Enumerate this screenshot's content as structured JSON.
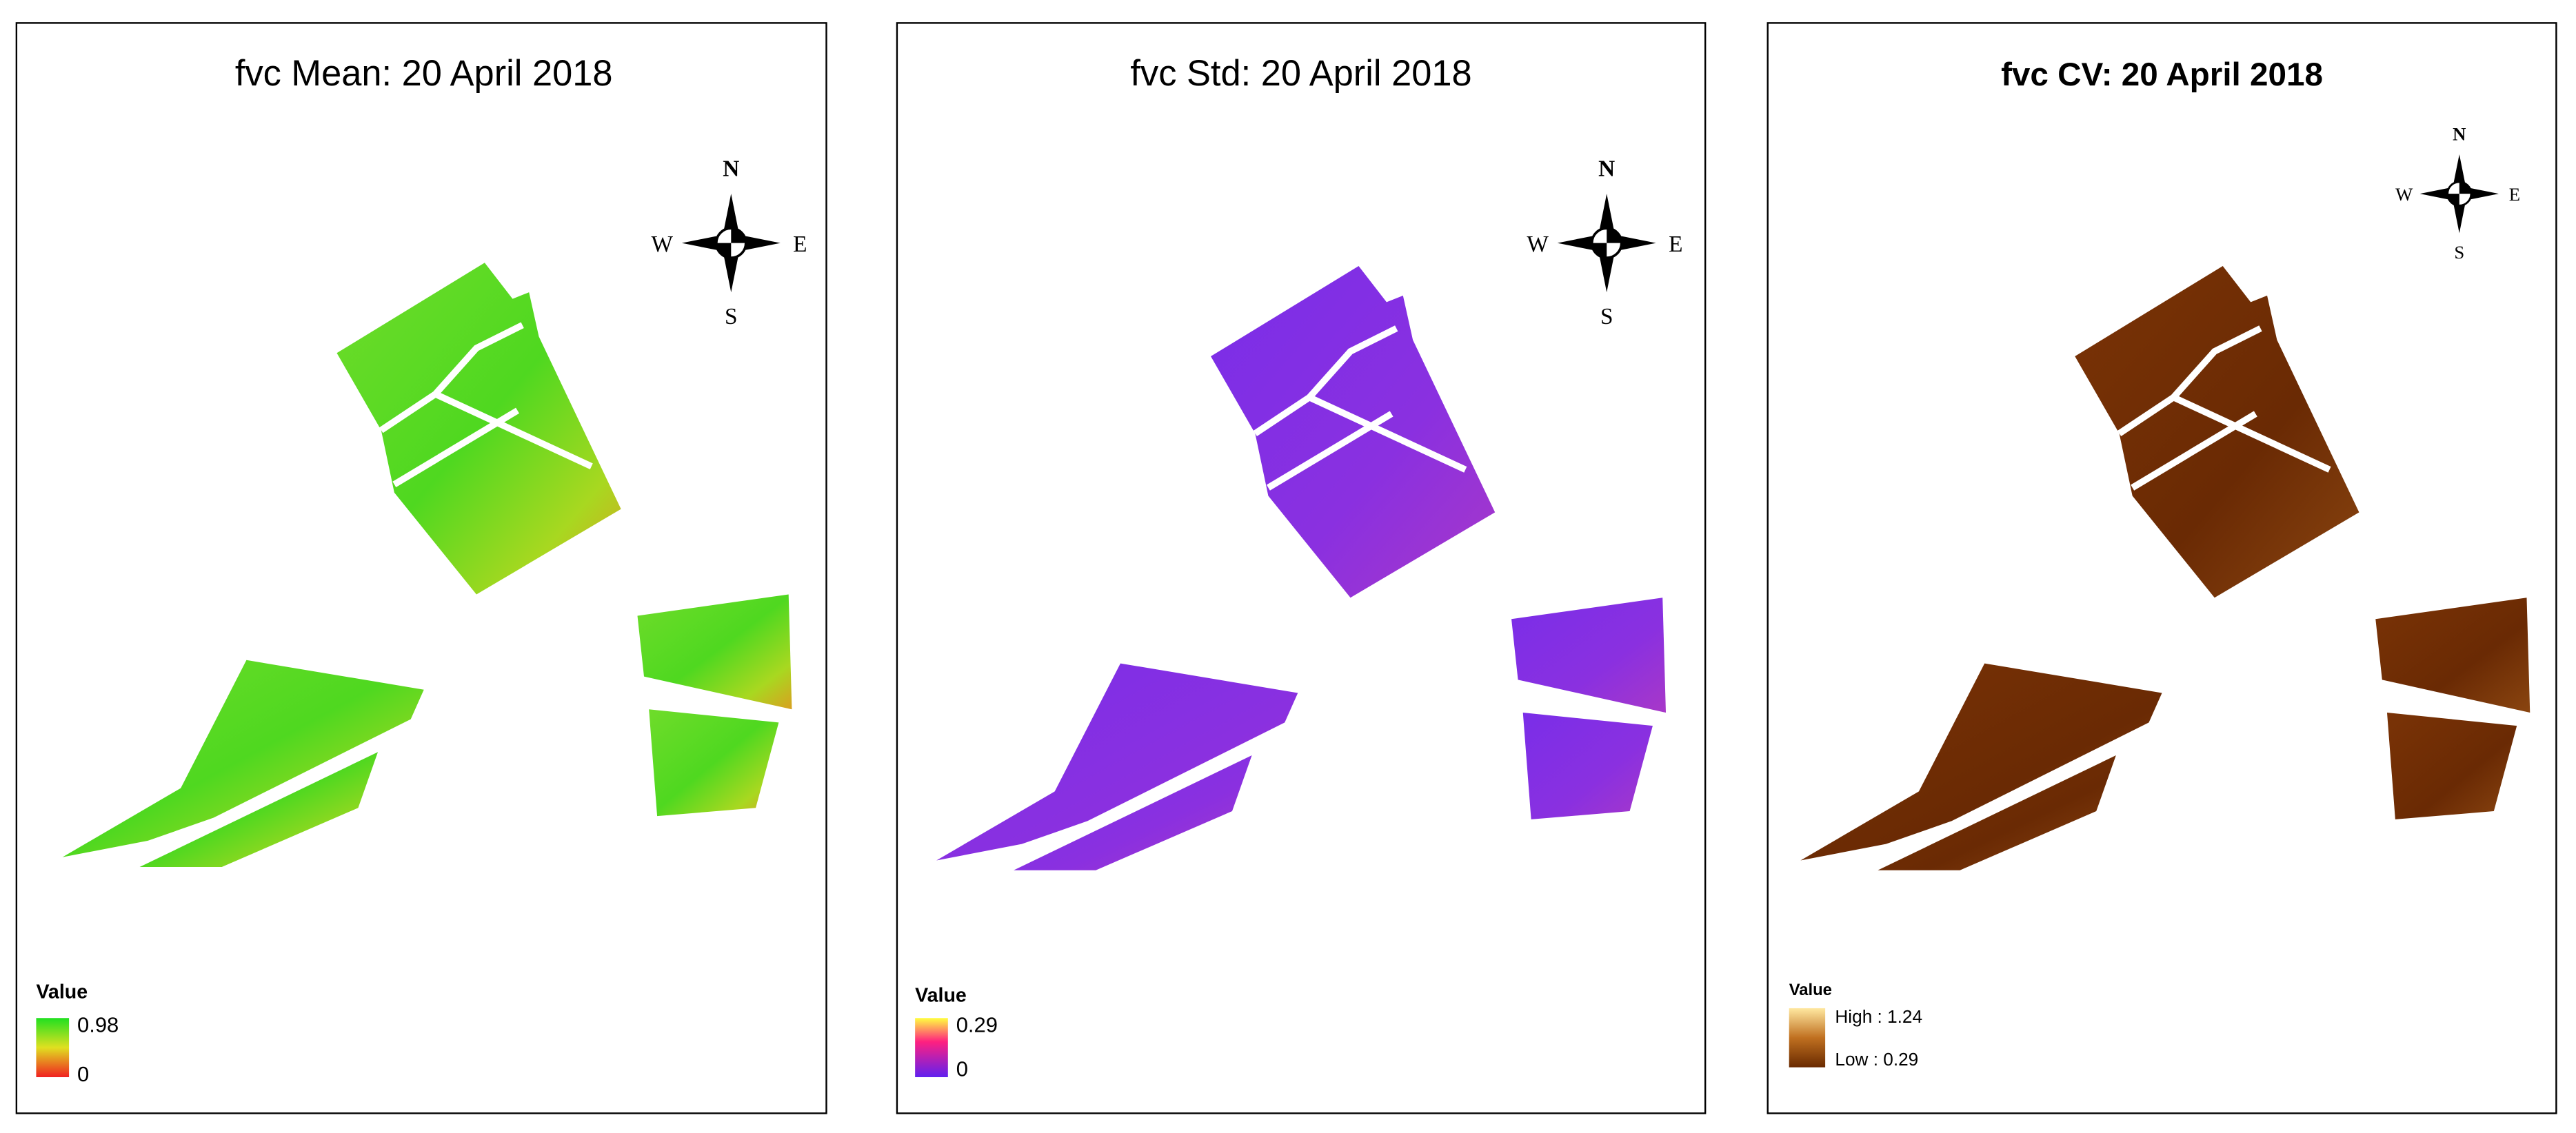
{
  "panels": [
    {
      "title": "fvc Mean: 20 April 2018",
      "compass": {
        "n": "N",
        "s": "S",
        "w": "W",
        "e": "E"
      },
      "legend": {
        "title": "Value",
        "high": "0.98",
        "low": "0"
      }
    },
    {
      "title": "fvc Std: 20 April 2018",
      "compass": {
        "n": "N",
        "s": "S",
        "w": "W",
        "e": "E"
      },
      "legend": {
        "title": "Value",
        "high": "0.29",
        "low": "0"
      }
    },
    {
      "title": "fvc CV: 20 April 2018",
      "compass": {
        "n": "N",
        "s": "S",
        "w": "W",
        "e": "E"
      },
      "legend": {
        "title": "Value",
        "high": "High : 1.24",
        "low": "Low : 0.29"
      }
    }
  ]
}
